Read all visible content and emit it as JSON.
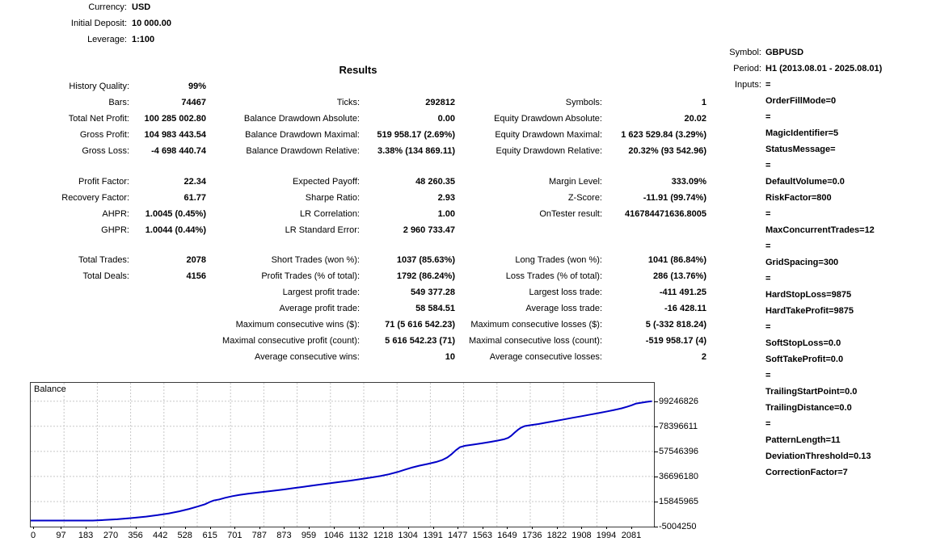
{
  "account": {
    "rows": [
      {
        "label": "Currency:",
        "value": "USD"
      },
      {
        "label": "Initial Deposit:",
        "value": "10 000.00"
      },
      {
        "label": "Leverage:",
        "value": "1:100"
      }
    ]
  },
  "results": {
    "title": "Results",
    "groups": [
      {
        "rows": [
          [
            "History Quality:",
            "99%",
            "",
            "",
            "",
            ""
          ],
          [
            "Bars:",
            "74467",
            "Ticks:",
            "292812",
            "Symbols:",
            "1"
          ],
          [
            "Total Net Profit:",
            "100 285 002.80",
            "Balance Drawdown Absolute:",
            "0.00",
            "Equity Drawdown Absolute:",
            "20.02"
          ],
          [
            "Gross Profit:",
            "104 983 443.54",
            "Balance Drawdown Maximal:",
            "519 958.17 (2.69%)",
            "Equity Drawdown Maximal:",
            "1 623 529.84 (3.29%)"
          ],
          [
            "Gross Loss:",
            "-4 698 440.74",
            "Balance Drawdown Relative:",
            "3.38% (134 869.11)",
            "Equity Drawdown Relative:",
            "20.32% (93 542.96)"
          ]
        ]
      },
      {
        "rows": [
          [
            "Profit Factor:",
            "22.34",
            "Expected Payoff:",
            "48 260.35",
            "Margin Level:",
            "333.09%"
          ],
          [
            "Recovery Factor:",
            "61.77",
            "Sharpe Ratio:",
            "2.93",
            "Z-Score:",
            "-11.91 (99.74%)"
          ],
          [
            "AHPR:",
            "1.0045 (0.45%)",
            "LR Correlation:",
            "1.00",
            "OnTester result:",
            "416784471636.8005"
          ],
          [
            "GHPR:",
            "1.0044 (0.44%)",
            "LR Standard Error:",
            "2 960 733.47",
            "",
            ""
          ]
        ]
      },
      {
        "rows": [
          [
            "Total Trades:",
            "2078",
            "Short Trades (won %):",
            "1037 (85.63%)",
            "Long Trades (won %):",
            "1041 (86.84%)"
          ],
          [
            "Total Deals:",
            "4156",
            "Profit Trades (% of total):",
            "1792 (86.24%)",
            "Loss Trades (% of total):",
            "286 (13.76%)"
          ],
          [
            "",
            "",
            "Largest profit trade:",
            "549 377.28",
            "Largest loss trade:",
            "-411 491.25"
          ],
          [
            "",
            "",
            "Average profit trade:",
            "58 584.51",
            "Average loss trade:",
            "-16 428.11"
          ],
          [
            "",
            "",
            "Maximum consecutive wins ($):",
            "71 (5 616 542.23)",
            "Maximum consecutive losses ($):",
            "5 (-332 818.24)"
          ],
          [
            "",
            "",
            "Maximal consecutive profit (count):",
            "5 616 542.23 (71)",
            "Maximal consecutive loss (count):",
            "-519 958.17 (4)"
          ],
          [
            "",
            "",
            "Average consecutive wins:",
            "10",
            "Average consecutive losses:",
            "2"
          ]
        ]
      }
    ]
  },
  "panel": {
    "rows": [
      {
        "label": "Symbol:",
        "value": "GBPUSD"
      },
      {
        "label": "Period:",
        "value": "H1 (2013.08.01 - 2025.08.01)"
      },
      {
        "label": "Inputs:",
        "value": "="
      }
    ],
    "input_lines": [
      "OrderFillMode=0",
      "=",
      "MagicIdentifier=5",
      "StatusMessage=",
      "=",
      "DefaultVolume=0.0",
      "RiskFactor=800",
      "=",
      "MaxConcurrentTrades=12",
      "=",
      "GridSpacing=300",
      "=",
      "HardStopLoss=9875",
      "HardTakeProfit=9875",
      "=",
      "SoftStopLoss=0.0",
      "SoftTakeProfit=0.0",
      "=",
      "TrailingStartPoint=0.0",
      "TrailingDistance=0.0",
      "=",
      "PatternLength=11",
      "DeviationThreshold=0.13",
      "CorrectionFactor=7"
    ]
  },
  "chart_data": {
    "type": "line",
    "title": "Balance",
    "legend_position": "top-left",
    "grid": true,
    "line_color": "#0000C8",
    "grid_color": "#C8C8C8",
    "xlim": [
      0,
      2157
    ],
    "ylim": [
      -5004250,
      114518750
    ],
    "x_ticks": [
      0,
      97,
      183,
      270,
      356,
      442,
      528,
      615,
      701,
      787,
      873,
      959,
      1046,
      1132,
      1218,
      1304,
      1391,
      1477,
      1563,
      1649,
      1736,
      1822,
      1908,
      1994,
      2081
    ],
    "y_ticks": [
      99246826,
      78396611,
      57546396,
      36696180,
      15845965,
      -5004250
    ],
    "series": [
      {
        "name": "Balance",
        "points": [
          [
            0,
            10000
          ],
          [
            205,
            10000
          ],
          [
            245,
            500000
          ],
          [
            290,
            1100000
          ],
          [
            340,
            2100000
          ],
          [
            390,
            3300000
          ],
          [
            430,
            4500000
          ],
          [
            470,
            6000000
          ],
          [
            505,
            7700000
          ],
          [
            540,
            9700000
          ],
          [
            570,
            11700000
          ],
          [
            595,
            13600000
          ],
          [
            612,
            15500000
          ],
          [
            625,
            16700000
          ],
          [
            645,
            17600000
          ],
          [
            665,
            19000000
          ],
          [
            690,
            20300000
          ],
          [
            715,
            21300000
          ],
          [
            745,
            22300000
          ],
          [
            775,
            23200000
          ],
          [
            805,
            24000000
          ],
          [
            835,
            24900000
          ],
          [
            870,
            25900000
          ],
          [
            905,
            27000000
          ],
          [
            940,
            28200000
          ],
          [
            980,
            29500000
          ],
          [
            1020,
            30800000
          ],
          [
            1060,
            32000000
          ],
          [
            1100,
            33200000
          ],
          [
            1135,
            34400000
          ],
          [
            1170,
            35700000
          ],
          [
            1205,
            37000000
          ],
          [
            1235,
            38500000
          ],
          [
            1265,
            40400000
          ],
          [
            1290,
            42300000
          ],
          [
            1315,
            44100000
          ],
          [
            1340,
            45600000
          ],
          [
            1370,
            47100000
          ],
          [
            1400,
            48800000
          ],
          [
            1420,
            50300000
          ],
          [
            1438,
            52500000
          ],
          [
            1452,
            55000000
          ],
          [
            1468,
            58500000
          ],
          [
            1482,
            61000000
          ],
          [
            1500,
            62200000
          ],
          [
            1530,
            63200000
          ],
          [
            1560,
            64300000
          ],
          [
            1590,
            65500000
          ],
          [
            1615,
            66600000
          ],
          [
            1635,
            67600000
          ],
          [
            1650,
            68800000
          ],
          [
            1660,
            70500000
          ],
          [
            1672,
            73000000
          ],
          [
            1684,
            75500000
          ],
          [
            1695,
            77300000
          ],
          [
            1708,
            78600000
          ],
          [
            1730,
            79400000
          ],
          [
            1755,
            80300000
          ],
          [
            1785,
            81600000
          ],
          [
            1815,
            82900000
          ],
          [
            1845,
            84200000
          ],
          [
            1875,
            85500000
          ],
          [
            1905,
            86800000
          ],
          [
            1935,
            88100000
          ],
          [
            1965,
            89400000
          ],
          [
            1995,
            90800000
          ],
          [
            2020,
            92000000
          ],
          [
            2045,
            93400000
          ],
          [
            2065,
            94800000
          ],
          [
            2080,
            95900000
          ],
          [
            2095,
            97300000
          ],
          [
            2115,
            98100000
          ],
          [
            2135,
            98800000
          ],
          [
            2150,
            99246826
          ]
        ]
      }
    ]
  }
}
